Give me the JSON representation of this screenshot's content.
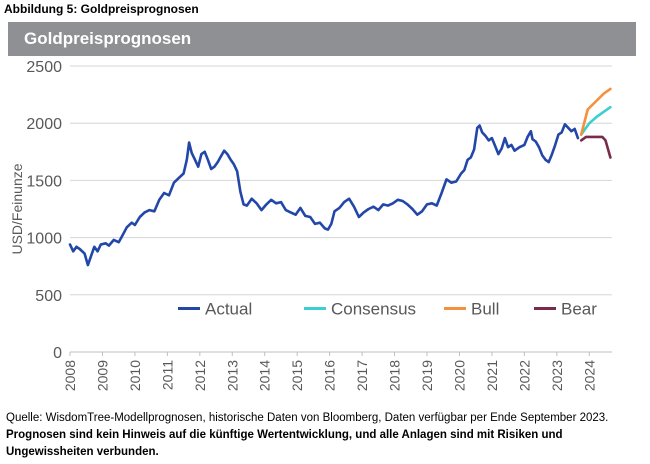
{
  "figure_caption": "Abbildung 5: Goldpreisprognosen",
  "source": {
    "text": "Quelle: WisdomTree-Modellprognosen, historische Daten von Bloomberg, Daten verfügbar per Ende September 2023.",
    "disclaimer": "Prognosen sind kein Hinweis auf die künftige Wertentwicklung, und alle Anlagen sind mit Risiken und Ungewissheiten verbunden."
  },
  "chart_data": {
    "type": "line",
    "title": "Goldpreisprognosen",
    "xlabel": "",
    "ylabel": "USD/Feinunze",
    "xlim": [
      2008,
      2024.7
    ],
    "ylim": [
      0,
      2500
    ],
    "yticks": [
      0,
      500,
      1000,
      1500,
      2000,
      2500
    ],
    "xticks": [
      2008,
      2009,
      2010,
      2011,
      2012,
      2013,
      2014,
      2015,
      2016,
      2017,
      2018,
      2019,
      2020,
      2021,
      2022,
      2023,
      2024
    ],
    "grid": "horizontal",
    "legend_position": "lower-center",
    "colors": {
      "Actual": "#2347a8",
      "Consensus": "#3ccfcf",
      "Bull": "#f5903d",
      "Bear": "#7a2a4a"
    },
    "series": [
      {
        "name": "Actual",
        "x": [
          2008.0,
          2008.1,
          2008.2,
          2008.3,
          2008.45,
          2008.55,
          2008.65,
          2008.75,
          2008.85,
          2008.95,
          2009.1,
          2009.2,
          2009.35,
          2009.5,
          2009.6,
          2009.75,
          2009.9,
          2010.0,
          2010.15,
          2010.3,
          2010.45,
          2010.6,
          2010.75,
          2010.9,
          2011.05,
          2011.2,
          2011.35,
          2011.5,
          2011.6,
          2011.67,
          2011.75,
          2011.85,
          2011.95,
          2012.05,
          2012.15,
          2012.25,
          2012.35,
          2012.45,
          2012.55,
          2012.65,
          2012.75,
          2012.85,
          2012.95,
          2013.05,
          2013.15,
          2013.25,
          2013.35,
          2013.45,
          2013.6,
          2013.75,
          2013.9,
          2014.05,
          2014.2,
          2014.35,
          2014.5,
          2014.65,
          2014.8,
          2014.95,
          2015.1,
          2015.25,
          2015.4,
          2015.55,
          2015.7,
          2015.85,
          2015.95,
          2016.05,
          2016.15,
          2016.3,
          2016.45,
          2016.6,
          2016.75,
          2016.9,
          2017.05,
          2017.2,
          2017.35,
          2017.5,
          2017.65,
          2017.8,
          2017.95,
          2018.1,
          2018.25,
          2018.4,
          2018.55,
          2018.7,
          2018.85,
          2019.0,
          2019.15,
          2019.3,
          2019.45,
          2019.6,
          2019.75,
          2019.9,
          2020.05,
          2020.15,
          2020.25,
          2020.35,
          2020.45,
          2020.55,
          2020.62,
          2020.7,
          2020.8,
          2020.9,
          2021.0,
          2021.1,
          2021.2,
          2021.3,
          2021.4,
          2021.5,
          2021.6,
          2021.7,
          2021.85,
          2022.0,
          2022.1,
          2022.2,
          2022.25,
          2022.35,
          2022.45,
          2022.55,
          2022.65,
          2022.75,
          2022.85,
          2022.95,
          2023.05,
          2023.15,
          2023.25,
          2023.35,
          2023.45,
          2023.55,
          2023.65
        ],
        "y": [
          940,
          880,
          920,
          900,
          860,
          760,
          840,
          920,
          880,
          940,
          950,
          930,
          980,
          960,
          1010,
          1090,
          1130,
          1110,
          1180,
          1220,
          1240,
          1230,
          1330,
          1390,
          1370,
          1480,
          1520,
          1560,
          1680,
          1830,
          1740,
          1680,
          1620,
          1730,
          1750,
          1680,
          1600,
          1620,
          1660,
          1710,
          1760,
          1730,
          1680,
          1640,
          1580,
          1400,
          1290,
          1280,
          1340,
          1300,
          1240,
          1290,
          1330,
          1300,
          1310,
          1240,
          1220,
          1200,
          1260,
          1190,
          1180,
          1120,
          1130,
          1080,
          1070,
          1120,
          1230,
          1260,
          1310,
          1340,
          1270,
          1180,
          1220,
          1250,
          1270,
          1240,
          1290,
          1280,
          1300,
          1330,
          1320,
          1290,
          1250,
          1200,
          1230,
          1290,
          1300,
          1280,
          1390,
          1510,
          1480,
          1490,
          1560,
          1590,
          1680,
          1700,
          1770,
          1960,
          1980,
          1920,
          1890,
          1850,
          1870,
          1800,
          1730,
          1780,
          1870,
          1790,
          1810,
          1760,
          1790,
          1810,
          1880,
          1930,
          1860,
          1840,
          1790,
          1720,
          1680,
          1660,
          1730,
          1810,
          1900,
          1920,
          1990,
          1960,
          1930,
          1950,
          1870
        ]
      },
      {
        "name": "Consensus",
        "x": [
          2023.75,
          2024.0,
          2024.25,
          2024.5,
          2024.65
        ],
        "y": [
          1900,
          2000,
          2060,
          2110,
          2140
        ]
      },
      {
        "name": "Bull",
        "x": [
          2023.75,
          2023.95,
          2024.2,
          2024.45,
          2024.65
        ],
        "y": [
          1900,
          2120,
          2190,
          2260,
          2300
        ]
      },
      {
        "name": "Bear",
        "x": [
          2023.75,
          2023.9,
          2024.15,
          2024.4,
          2024.5,
          2024.65
        ],
        "y": [
          1850,
          1880,
          1880,
          1880,
          1850,
          1700
        ]
      }
    ]
  }
}
